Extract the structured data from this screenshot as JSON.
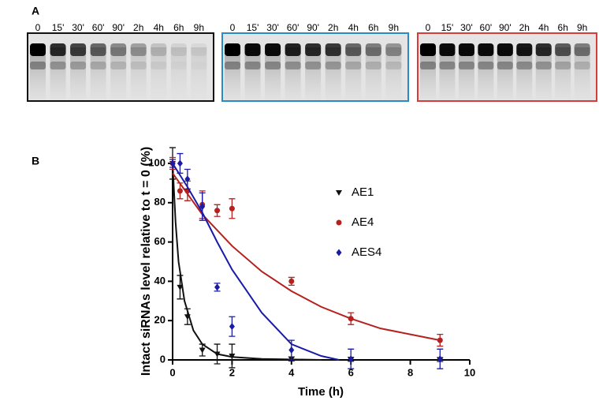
{
  "panel_labels": [
    "A",
    "B"
  ],
  "gel_lanes": [
    "0",
    "15'",
    "30'",
    "60'",
    "90'",
    "2h",
    "4h",
    "6h",
    "9h"
  ],
  "chart_data": {
    "type": "scatter",
    "xlabel": "Time (h)",
    "ylabel": "Intact siRNAs level relative to t = 0 (%)",
    "x": [
      0,
      0.25,
      0.5,
      1,
      1.5,
      2,
      4,
      6,
      9
    ],
    "xlim": [
      0,
      10
    ],
    "xticks": [
      0,
      2,
      4,
      6,
      8,
      10
    ],
    "ylim": [
      0,
      100
    ],
    "yticks": [
      0,
      20,
      40,
      60,
      80,
      100
    ],
    "series": [
      {
        "name": "AE1",
        "color": "#111111",
        "marker": "triangle-down",
        "values": [
          100,
          37,
          22,
          5,
          3,
          2,
          0.5,
          0.3,
          0.2
        ],
        "errors": [
          8,
          6,
          4,
          3,
          5,
          6,
          1,
          1,
          1
        ],
        "fit_x": [
          0,
          0.1,
          0.2,
          0.4,
          0.7,
          1,
          1.5,
          2,
          3,
          5
        ],
        "fit_values": [
          100,
          70,
          50,
          30,
          15,
          8,
          3,
          1.5,
          0.5,
          0
        ]
      },
      {
        "name": "AE4",
        "color": "#b5211e",
        "marker": "circle",
        "values": [
          100,
          86,
          86,
          79,
          76,
          77,
          40,
          21,
          10
        ],
        "errors": [
          3,
          4,
          5,
          7,
          3,
          5,
          2,
          3,
          3
        ],
        "fit_x": [
          0,
          1,
          2,
          3,
          4,
          5,
          6,
          7,
          8,
          9
        ],
        "fit_values": [
          95,
          74,
          58,
          45,
          35,
          27,
          21,
          16,
          13,
          10
        ]
      },
      {
        "name": "AES4",
        "color": "#1a1aa8",
        "marker": "diamond",
        "values": [
          100,
          100,
          92,
          78,
          37,
          17,
          5,
          0.5,
          0.5
        ],
        "errors": [
          2,
          5,
          5,
          7,
          2,
          5,
          5,
          5,
          5
        ],
        "fit_x": [
          0,
          0.5,
          1,
          1.5,
          2,
          2.5,
          3,
          4,
          5,
          5.6
        ],
        "fit_values": [
          100,
          88,
          75,
          60,
          46,
          35,
          24,
          8,
          2,
          0
        ]
      }
    ]
  }
}
